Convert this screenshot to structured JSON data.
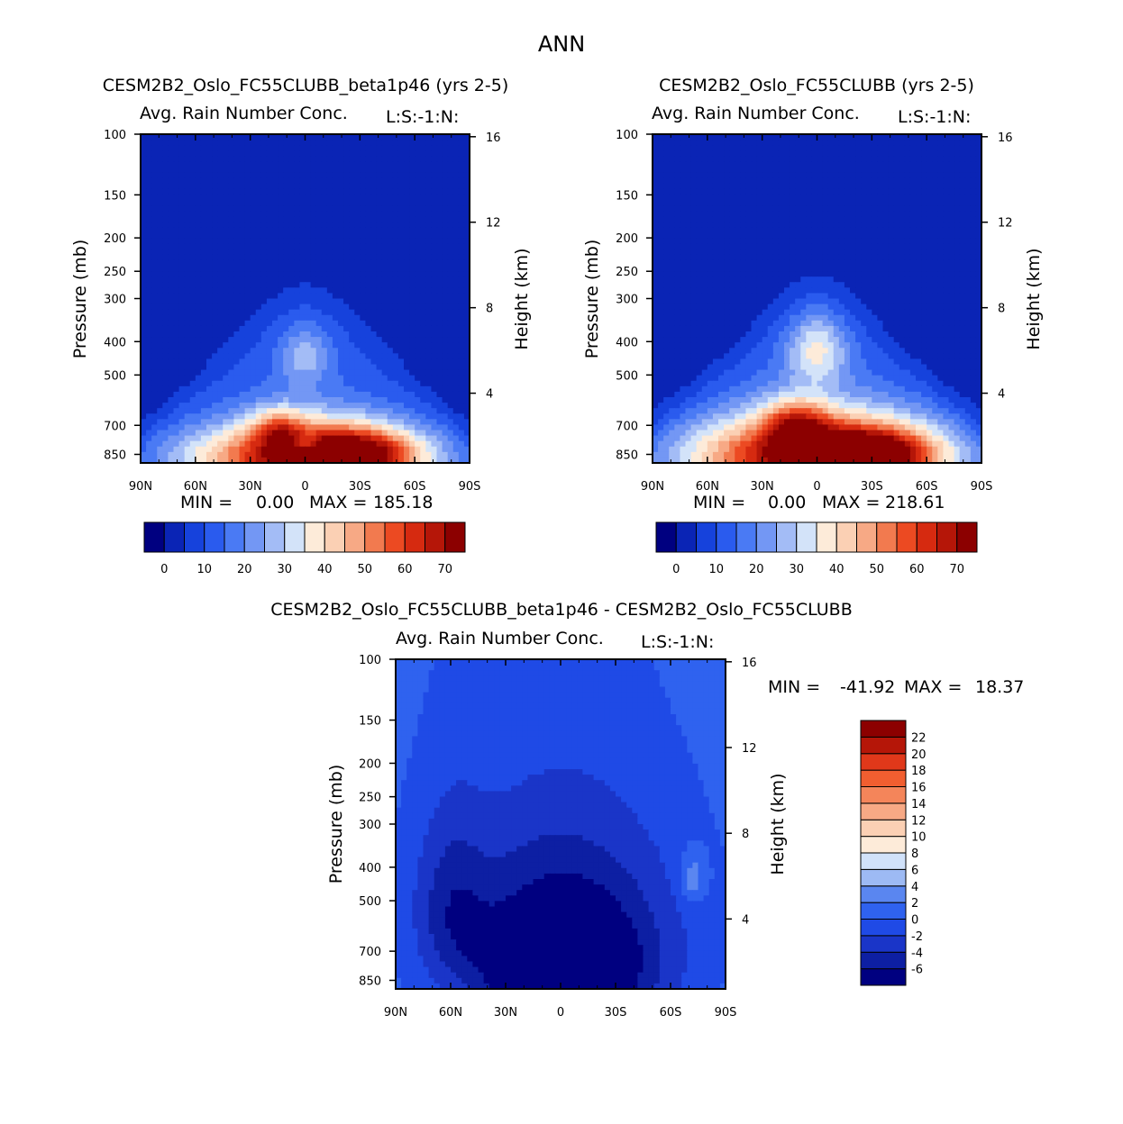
{
  "figure_title": "ANN",
  "colors": {
    "left_scale": [
      "#000080",
      "#0a24b5",
      "#1642dc",
      "#2a5bee",
      "#4a7af4",
      "#7397f4",
      "#a3bcf6",
      "#d3e3f9",
      "#fdebd9",
      "#fbd0b4",
      "#f7a985",
      "#f27a4f",
      "#ec4a22",
      "#d62a10",
      "#b51608",
      "#8c0000"
    ],
    "diff_scale": [
      "#000080",
      "#0d1fa3",
      "#1a35c8",
      "#1f4ae6",
      "#2f62ef",
      "#5a86f0",
      "#9dbaf4",
      "#d1e2fa",
      "#fdebd9",
      "#fbd0b4",
      "#f7a985",
      "#f4855a",
      "#f15e30",
      "#e0381a",
      "#b51608",
      "#8c0000"
    ]
  },
  "chart_data": [
    {
      "type": "heatmap",
      "panel": "top-left",
      "title": "CESM2B2_Oslo_FC55CLUBB_beta1p46 (yrs 2-5)",
      "subtitle": "Avg. Rain Number Conc.",
      "subtitle_right": "L:S:-1:N:",
      "xlabel": "",
      "ylabel": "Pressure (mb)",
      "ylabel_right": "Height (km)",
      "x_ticks": [
        "90N",
        "60N",
        "30N",
        "0",
        "30S",
        "60S",
        "90S"
      ],
      "y_ticks": [
        "100",
        "150",
        "200",
        "250",
        "300",
        "400",
        "500",
        "700",
        "850"
      ],
      "y_right_ticks": [
        "16",
        "12",
        "8",
        "4"
      ],
      "stats": {
        "min_label": "MIN =",
        "min": "0.00",
        "max_label": "MAX =",
        "max": "185.18"
      },
      "colorbar_labels": [
        "0",
        "10",
        "20",
        "30",
        "40",
        "50",
        "60",
        "70"
      ],
      "colorbar_levels": [
        0,
        5,
        10,
        15,
        20,
        25,
        30,
        35,
        40,
        45,
        50,
        55,
        60,
        65,
        70
      ],
      "field": {
        "x_range": [
          90,
          -90
        ],
        "y_range": [
          100,
          900
        ],
        "blobs": [
          {
            "lat": 0,
            "p": 870,
            "sx": 48,
            "sy": 140,
            "amp": 60
          },
          {
            "lat": -28,
            "p": 840,
            "sx": 22,
            "sy": 90,
            "amp": 32
          },
          {
            "lat": 15,
            "p": 720,
            "sx": 10,
            "sy": 70,
            "amp": 22
          },
          {
            "lat": 0,
            "p": 440,
            "sx": 10,
            "sy": 60,
            "amp": 14
          },
          {
            "lat": 0,
            "p": 790,
            "sx": 6,
            "sy": 35,
            "amp": -18
          }
        ]
      }
    },
    {
      "type": "heatmap",
      "panel": "top-right",
      "title": "CESM2B2_Oslo_FC55CLUBB (yrs 2-5)",
      "subtitle": "Avg. Rain Number Conc.",
      "subtitle_right": "L:S:-1:N:",
      "xlabel": "",
      "ylabel": "Pressure (mb)",
      "ylabel_right": "Height (km)",
      "x_ticks": [
        "90N",
        "60N",
        "30N",
        "0",
        "30S",
        "60S",
        "90S"
      ],
      "y_ticks": [
        "100",
        "150",
        "200",
        "250",
        "300",
        "400",
        "500",
        "700",
        "850"
      ],
      "y_right_ticks": [
        "16",
        "12",
        "8",
        "4"
      ],
      "stats": {
        "min_label": "MIN =",
        "min": "0.00",
        "max_label": "MAX =",
        "max": "218.61"
      },
      "colorbar_labels": [
        "0",
        "10",
        "20",
        "30",
        "40",
        "50",
        "60",
        "70"
      ],
      "colorbar_levels": [
        0,
        5,
        10,
        15,
        20,
        25,
        30,
        35,
        40,
        45,
        50,
        55,
        60,
        65,
        70
      ],
      "field": {
        "x_range": [
          90,
          -90
        ],
        "y_range": [
          100,
          900
        ],
        "blobs": [
          {
            "lat": 0,
            "p": 860,
            "sx": 52,
            "sy": 160,
            "amp": 66
          },
          {
            "lat": -30,
            "p": 850,
            "sx": 22,
            "sy": 90,
            "amp": 36
          },
          {
            "lat": 12,
            "p": 700,
            "sx": 12,
            "sy": 80,
            "amp": 28
          },
          {
            "lat": 0,
            "p": 420,
            "sx": 12,
            "sy": 70,
            "amp": 22
          },
          {
            "lat": 0,
            "p": 830,
            "sx": 6,
            "sy": 30,
            "amp": -22
          }
        ]
      }
    },
    {
      "type": "heatmap",
      "panel": "bottom",
      "title": "CESM2B2_Oslo_FC55CLUBB_beta1p46 - CESM2B2_Oslo_FC55CLUBB",
      "subtitle": "Avg. Rain Number Conc.",
      "subtitle_right": "L:S:-1:N:",
      "xlabel": "",
      "ylabel": "Pressure (mb)",
      "ylabel_right": "Height (km)",
      "x_ticks": [
        "90N",
        "60N",
        "30N",
        "0",
        "30S",
        "60S",
        "90S"
      ],
      "y_ticks": [
        "100",
        "150",
        "200",
        "250",
        "300",
        "400",
        "500",
        "700",
        "850"
      ],
      "y_right_ticks": [
        "16",
        "12",
        "8",
        "4"
      ],
      "stats": {
        "min_label": "MIN =",
        "min": "-41.92",
        "max_label": "MAX =",
        "max": "18.37"
      },
      "colorbar_labels": [
        "22",
        "20",
        "18",
        "16",
        "14",
        "12",
        "10",
        "8",
        "6",
        "4",
        "2",
        "0",
        "-2",
        "-4",
        "-6"
      ],
      "colorbar_levels": [
        -6,
        -4,
        -2,
        0,
        2,
        4,
        6,
        8,
        10,
        12,
        14,
        16,
        18,
        20,
        22
      ],
      "field": {
        "x_range": [
          90,
          -90
        ],
        "y_range": [
          100,
          900
        ],
        "base": 1,
        "blobs": [
          {
            "lat": -2,
            "p": 800,
            "sx": 38,
            "sy": 260,
            "amp": -12
          },
          {
            "lat": 60,
            "p": 520,
            "sx": 14,
            "sy": 200,
            "amp": -4
          },
          {
            "lat": 0,
            "p": 400,
            "sx": 55,
            "sy": 230,
            "amp": -3
          },
          {
            "lat": -72,
            "p": 430,
            "sx": 5,
            "sy": 50,
            "amp": 4
          }
        ]
      }
    }
  ]
}
